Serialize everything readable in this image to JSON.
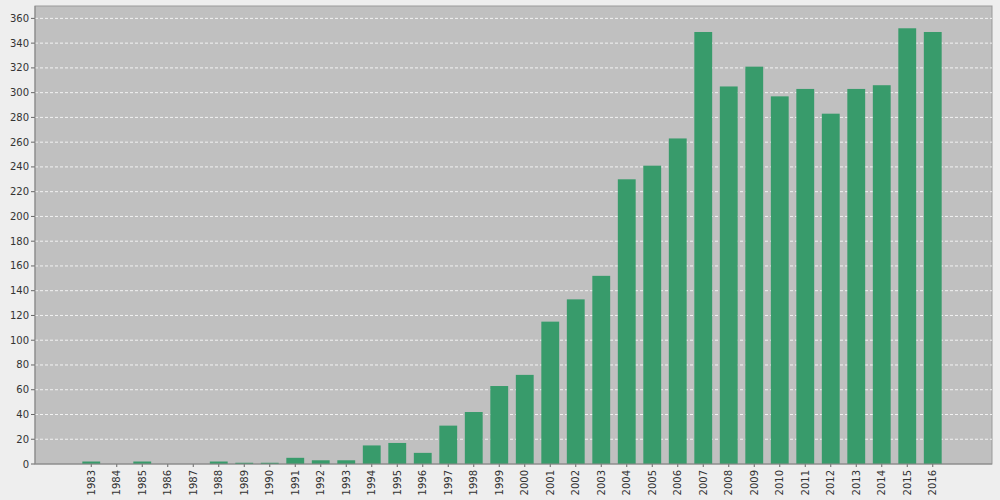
{
  "chart_data": {
    "type": "bar",
    "categories": [
      "1983",
      "1984",
      "1985",
      "1986",
      "1987",
      "1988",
      "1989",
      "1990",
      "1991",
      "1992",
      "1993",
      "1994",
      "1995",
      "1996",
      "1997",
      "1998",
      "1999",
      "2000",
      "2001",
      "2002",
      "2003",
      "2004",
      "2005",
      "2006",
      "2007",
      "2008",
      "2009",
      "2010",
      "2011",
      "2012",
      "2013",
      "2014",
      "2015",
      "2016"
    ],
    "values": [
      2,
      0,
      2,
      0,
      0,
      2,
      1,
      1,
      5,
      3,
      3,
      15,
      17,
      9,
      31,
      42,
      63,
      72,
      115,
      133,
      152,
      230,
      241,
      263,
      349,
      305,
      321,
      297,
      303,
      283,
      303,
      306,
      352,
      349
    ],
    "color": "#389b6b",
    "ylim": [
      0,
      370
    ],
    "yticks": [
      0,
      20,
      40,
      60,
      80,
      100,
      120,
      140,
      160,
      180,
      200,
      220,
      240,
      260,
      280,
      300,
      320,
      340,
      360
    ],
    "grid": true
  }
}
